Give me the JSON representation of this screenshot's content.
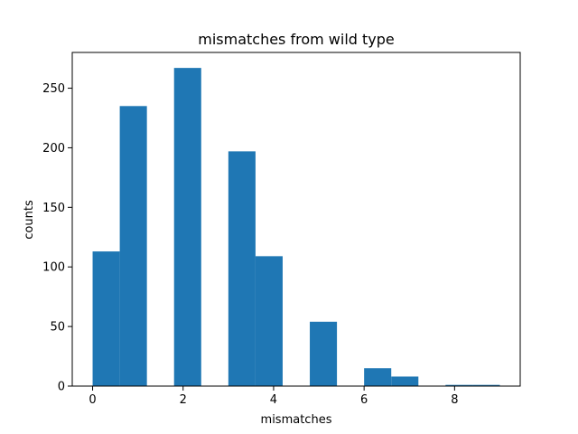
{
  "chart_data": {
    "type": "bar",
    "title": "mismatches from wild type",
    "xlabel": "mismatches",
    "ylabel": "counts",
    "xlim": [
      -0.45,
      9.45
    ],
    "ylim": [
      0,
      280
    ],
    "x_ticks": [
      0,
      2,
      4,
      6,
      8
    ],
    "y_ticks": [
      0,
      50,
      100,
      150,
      200,
      250
    ],
    "bin_edges": [
      0,
      0.6,
      1.2,
      1.8,
      2.4,
      3.0,
      3.6,
      4.2,
      4.8,
      5.4,
      6.0,
      6.6,
      7.2,
      7.8,
      8.4,
      9.0
    ],
    "values": [
      113,
      235,
      0,
      267,
      0,
      197,
      109,
      0,
      54,
      0,
      15,
      8,
      0,
      1,
      1
    ],
    "bar_color": "#1f77b4",
    "grid": false
  }
}
